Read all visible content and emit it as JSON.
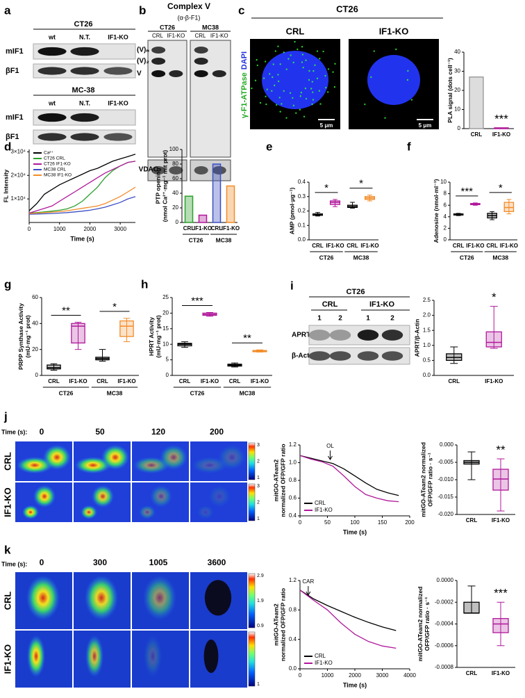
{
  "figure": {
    "a": {
      "label": "a",
      "blocks": [
        {
          "title": "CT26",
          "lanes": [
            "wt",
            "N.T.",
            "IF1-KO"
          ],
          "rows": [
            "mIF1",
            "βF1"
          ]
        },
        {
          "title": "MC-38",
          "lanes": [
            "wt",
            "N.T.",
            "IF1-KO"
          ],
          "rows": [
            "mIF1",
            "βF1"
          ]
        }
      ]
    },
    "b": {
      "label": "b",
      "title": "Complex V",
      "subtitle": "(α-β-F1)",
      "groups": [
        {
          "name": "CT26",
          "lanes": [
            "CRL",
            "IF1-KO"
          ]
        },
        {
          "name": "MC38",
          "lanes": [
            "CRL",
            "IF1-KO"
          ]
        }
      ],
      "bands": [
        "(V)ₙ",
        "(V)₂",
        "V"
      ],
      "loading": "VDAC"
    },
    "c": {
      "label": "c",
      "title": "CT26",
      "conditions": [
        "CRL",
        "IF1-KO"
      ],
      "stain": "γ-F1-ATPase",
      "counterstain": "DAPI",
      "scale_bars": [
        "5 μm",
        "5 μm"
      ]
    },
    "i": {
      "label": "i",
      "title": "CT26",
      "groups": [
        "CRL",
        "IF1-KO"
      ],
      "lanes": [
        "1",
        "2",
        "1",
        "2"
      ],
      "rows": [
        "APRT",
        "β-Actin"
      ]
    },
    "j": {
      "label": "j",
      "time_label": "Time (s):",
      "times": [
        "0",
        "50",
        "120",
        "200"
      ],
      "rows": [
        "CRL",
        "IF1-KO"
      ],
      "colorbars": [
        [
          "3",
          "2",
          "1"
        ],
        [
          "3",
          "2",
          "1"
        ]
      ]
    },
    "k": {
      "label": "k",
      "time_label": "Time (s):",
      "times": [
        "0",
        "300",
        "1005",
        "3600"
      ],
      "rows": [
        "CRL",
        "IF1-KO"
      ],
      "colorbars": [
        [
          "2.9",
          "1.9",
          "0.9"
        ],
        [
          "1"
        ]
      ]
    }
  },
  "chart_data": [
    {
      "type": "bar",
      "ylabel": [
        "PLA signal (dots cell⁻¹)"
      ],
      "categories": [
        "CRL",
        "IF1-KO"
      ],
      "values": [
        27,
        0.4
      ],
      "colors": [
        "#9e9e9e",
        "#b0179a"
      ],
      "ylim": [
        0,
        40
      ],
      "yticks": [
        0,
        10,
        20,
        30,
        40
      ],
      "annotations": [
        "***"
      ]
    },
    {
      "type": "line",
      "label": "d",
      "ylabel": [
        "FL Intensity"
      ],
      "xlabel": "Time (s)",
      "x": [
        0,
        250,
        500,
        750,
        1000,
        1250,
        1500,
        1750,
        2000,
        2250,
        2500,
        2750,
        3000,
        3250,
        3500
      ],
      "series": [
        {
          "name": "Ca²⁺",
          "color": "#000000",
          "values": [
            5000,
            8000,
            12000,
            14000,
            16000,
            17500,
            19000,
            20500,
            22000,
            23000,
            24500,
            26000,
            27000,
            28000,
            29000
          ]
        },
        {
          "name": "CT26 CRL",
          "color": "#2ca02c",
          "values": [
            4000,
            4200,
            4500,
            4800,
            5200,
            5800,
            7000,
            9000,
            12000,
            15000,
            19000,
            22000,
            24000,
            25500,
            26000
          ]
        },
        {
          "name": "CT26 IF1-KO",
          "color": "#b0179a",
          "values": [
            4000,
            5000,
            6000,
            7000,
            9000,
            11000,
            13000,
            15000,
            17000,
            19000,
            21000,
            22500,
            24000,
            25500,
            26000
          ]
        },
        {
          "name": "MC38 CRL",
          "color": "#3b4fc4",
          "values": [
            3500,
            3600,
            3700,
            3800,
            4000,
            4200,
            4500,
            4800,
            5200,
            5800,
            6500,
            7500,
            8500,
            10000,
            11000
          ]
        },
        {
          "name": "MC38 IF1-KO",
          "color": "#f28c28",
          "values": [
            3800,
            4000,
            4200,
            4400,
            4600,
            5000,
            5500,
            6000,
            6500,
            7000,
            8000,
            9500,
            11000,
            13000,
            15000
          ]
        }
      ],
      "xlim": [
        0,
        3500
      ],
      "xticks": [
        0,
        1000,
        2000,
        3000
      ],
      "ylim": [
        0,
        31000
      ],
      "yticks": [
        {
          "value": 10000,
          "label": "1×10⁴"
        },
        {
          "value": 20000,
          "label": "2×10⁴"
        },
        {
          "value": 30000,
          "label": "3×10⁴"
        }
      ],
      "legend": "upper left"
    },
    {
      "type": "bar",
      "ylabel": [
        "PTP opening",
        "(nmol Ca²⁺·mg⁻¹ mit prot)"
      ],
      "categories": [
        "CRL",
        "IF1-KO",
        "CRL",
        "IF1-KO"
      ],
      "groups": [
        "CT26",
        "MC38"
      ],
      "values": [
        36,
        10,
        80,
        50
      ],
      "colors": [
        "#2ca02c",
        "#b0179a",
        "#3b4fc4",
        "#f28c28"
      ],
      "ylim": [
        0,
        100
      ],
      "yticks": [
        0,
        20,
        40,
        60,
        80,
        100
      ]
    },
    {
      "type": "box",
      "label": "e",
      "ylabel": [
        "AMP (pmol·μg⁻¹)"
      ],
      "categories": [
        "CRL",
        "IF1-KO",
        "CRL",
        "IF1-KO"
      ],
      "groups": [
        "CT26",
        "MC38"
      ],
      "min": [
        0.165,
        0.23,
        0.22,
        0.27
      ],
      "q1": [
        0.17,
        0.245,
        0.225,
        0.28
      ],
      "median": [
        0.175,
        0.26,
        0.23,
        0.29
      ],
      "q3": [
        0.18,
        0.27,
        0.24,
        0.3
      ],
      "max": [
        0.19,
        0.28,
        0.26,
        0.31
      ],
      "colors": [
        "#000000",
        "#b0179a",
        "#000000",
        "#f28c28"
      ],
      "ylim": [
        0,
        0.4
      ],
      "yticks": [
        {
          "value": 0,
          "label": "0.0"
        },
        0.1,
        0.2,
        0.3,
        0.4
      ],
      "annotations": [
        "*",
        "*"
      ]
    },
    {
      "type": "box",
      "label": "f",
      "ylabel": [
        "Adenosine (nmol·ml⁻¹)"
      ],
      "categories": [
        "CRL",
        "IF1-KO",
        "CRL",
        "IF1-KO"
      ],
      "groups": [
        "CT26",
        "MC38"
      ],
      "min": [
        4.2,
        6.0,
        3.5,
        4.5
      ],
      "q1": [
        4.3,
        6.1,
        3.8,
        4.9
      ],
      "median": [
        4.4,
        6.2,
        4.2,
        5.6
      ],
      "q3": [
        4.5,
        6.3,
        4.6,
        6.5
      ],
      "max": [
        4.6,
        6.4,
        4.9,
        7.0
      ],
      "colors": [
        "#000000",
        "#b0179a",
        "#000000",
        "#f28c28"
      ],
      "ylim": [
        0,
        10
      ],
      "yticks": [
        0,
        2,
        4,
        6,
        8,
        10
      ],
      "annotations": [
        "***",
        "*"
      ]
    },
    {
      "type": "box",
      "label": "g",
      "ylabel": [
        "PRPP Synthase Activity",
        "(mU·mg⁻¹ prot)"
      ],
      "categories": [
        "CRL",
        "IF1-KO",
        "CRL",
        "IF1-KO"
      ],
      "groups": [
        "CT26",
        "MC38"
      ],
      "min": [
        4,
        20,
        11,
        26
      ],
      "q1": [
        5,
        25,
        12,
        30
      ],
      "median": [
        6,
        38,
        13,
        38
      ],
      "q3": [
        8,
        40,
        14,
        42
      ],
      "max": [
        9,
        41,
        20,
        44
      ],
      "colors": [
        "#000000",
        "#b0179a",
        "#000000",
        "#f28c28"
      ],
      "ylim": [
        0,
        60
      ],
      "yticks": [
        0,
        20,
        40,
        60
      ],
      "annotations": [
        "**",
        "*"
      ]
    },
    {
      "type": "box",
      "label": "h",
      "ylabel": [
        "HPRT Activity",
        "(mU·mg⁻¹ prot)"
      ],
      "categories": [
        "CRL",
        "IF1-KO",
        "CRL",
        "IF1-KO"
      ],
      "groups": [
        "CT26",
        "MC38"
      ],
      "min": [
        9,
        19,
        2.7,
        7.5
      ],
      "q1": [
        9.5,
        19.3,
        3,
        7.6
      ],
      "median": [
        10,
        19.6,
        3.3,
        7.8
      ],
      "q3": [
        10.3,
        20,
        3.6,
        8
      ],
      "max": [
        10.8,
        20.2,
        4,
        8.2
      ],
      "colors": [
        "#000000",
        "#b0179a",
        "#000000",
        "#f28c28"
      ],
      "ylim": [
        0,
        25
      ],
      "yticks": [
        0,
        5,
        10,
        15,
        20,
        25
      ],
      "annotations": [
        "***",
        "**"
      ]
    },
    {
      "type": "box",
      "ylabel": [
        "APRT/β-Actin"
      ],
      "categories": [
        "CRL",
        "IF1-KO"
      ],
      "min": [
        0.4,
        0.9
      ],
      "q1": [
        0.5,
        0.95
      ],
      "median": [
        0.6,
        1.1
      ],
      "q3": [
        0.72,
        1.45
      ],
      "max": [
        0.95,
        2.3
      ],
      "colors": [
        "#000000",
        "#b0179a"
      ],
      "ylim": [
        0,
        2.5
      ],
      "yticks": [
        {
          "value": 0,
          "label": "0.0"
        },
        0.5,
        {
          "value": 1,
          "label": "1.0"
        },
        1.5,
        {
          "value": 2,
          "label": "2.0"
        },
        2.5
      ],
      "annotations": [
        "*"
      ]
    },
    {
      "type": "line",
      "ylabel": [
        "mitGO-ATeam2",
        "normalized OFP/GFP ratio"
      ],
      "xlabel": "Time (s)",
      "x": [
        0,
        20,
        40,
        60,
        80,
        100,
        120,
        140,
        160,
        180
      ],
      "series": [
        {
          "name": "CRL",
          "color": "#000000",
          "values": [
            1.08,
            1.05,
            1.02,
            0.99,
            0.93,
            0.85,
            0.77,
            0.7,
            0.66,
            0.63
          ]
        },
        {
          "name": "IF1-KO",
          "color": "#b0179a",
          "values": [
            1.08,
            1.04,
            1.01,
            0.96,
            0.85,
            0.73,
            0.64,
            0.6,
            0.57,
            0.56
          ]
        }
      ],
      "xlim": [
        0,
        200
      ],
      "xticks": [
        0,
        50,
        100,
        150,
        200
      ],
      "ylim": [
        0.4,
        1.2
      ],
      "yticks": [
        0.4,
        0.6,
        0.8,
        {
          "value": 1,
          "label": "1.0"
        },
        1.2
      ],
      "legend": "lower left",
      "annotation": {
        "text": "OL",
        "x": 55
      }
    },
    {
      "type": "box",
      "ylabel": [
        "mitGO-ATeam2 normalized",
        "OFP/GFP ratio · s⁻¹"
      ],
      "categories": [
        "CRL",
        "IF1-KO"
      ],
      "min": [
        -0.01,
        -0.019
      ],
      "q1": [
        -0.0055,
        -0.013
      ],
      "median": [
        -0.005,
        -0.0098
      ],
      "q3": [
        -0.0045,
        -0.007
      ],
      "max": [
        -0.002,
        -0.004
      ],
      "colors": [
        "#000000",
        "#b0179a"
      ],
      "ylim": [
        -0.02,
        0
      ],
      "yticks": [
        {
          "value": -0.02,
          "label": "-0.020"
        },
        {
          "value": -0.015,
          "label": "-0.015"
        },
        {
          "value": -0.01,
          "label": "-0.010"
        },
        -0.005,
        {
          "value": 0,
          "label": "0.000"
        }
      ],
      "annotations": [
        "**"
      ]
    },
    {
      "type": "line",
      "ylabel": [
        "mitGO-ATeam2",
        "normalized OFP/GFP ratio"
      ],
      "xlabel": "Time (s)",
      "x": [
        0,
        500,
        1000,
        1500,
        2000,
        2500,
        3000,
        3500
      ],
      "series": [
        {
          "name": "CRL",
          "color": "#000000",
          "values": [
            1.07,
            0.95,
            0.86,
            0.78,
            0.7,
            0.63,
            0.57,
            0.52
          ]
        },
        {
          "name": "IF1-KO",
          "color": "#b0179a",
          "values": [
            1.07,
            0.93,
            0.8,
            0.62,
            0.47,
            0.37,
            0.31,
            0.28
          ]
        }
      ],
      "xlim": [
        0,
        4000
      ],
      "xticks": [
        0,
        1000,
        2000,
        3000,
        4000
      ],
      "ylim": [
        0,
        1.2
      ],
      "yticks": [
        {
          "value": 0,
          "label": "0.0"
        },
        0.4,
        0.8,
        1.2
      ],
      "legend": "lower left",
      "annotation": {
        "text": "CAR",
        "x": 300
      }
    },
    {
      "type": "box",
      "ylabel": [
        "mitGO-ATeam2 normalized",
        "OFP/GFP ratio · s⁻¹"
      ],
      "categories": [
        "CRL",
        "IF1-KO"
      ],
      "min": [
        -0.0003,
        -0.0006
      ],
      "q1": [
        -0.0003,
        -0.00048
      ],
      "median": [
        -0.0003,
        -0.0004
      ],
      "q3": [
        -0.0002,
        -0.00035
      ],
      "max": [
        -5e-05,
        -0.0002
      ],
      "colors": [
        "#000000",
        "#b0179a"
      ],
      "ylim": [
        -0.0008,
        0
      ],
      "yticks": [
        -0.0008,
        -0.0006,
        -0.0004,
        -0.0002,
        {
          "value": 0,
          "label": "0.0000"
        }
      ],
      "annotations": [
        "***"
      ]
    }
  ]
}
